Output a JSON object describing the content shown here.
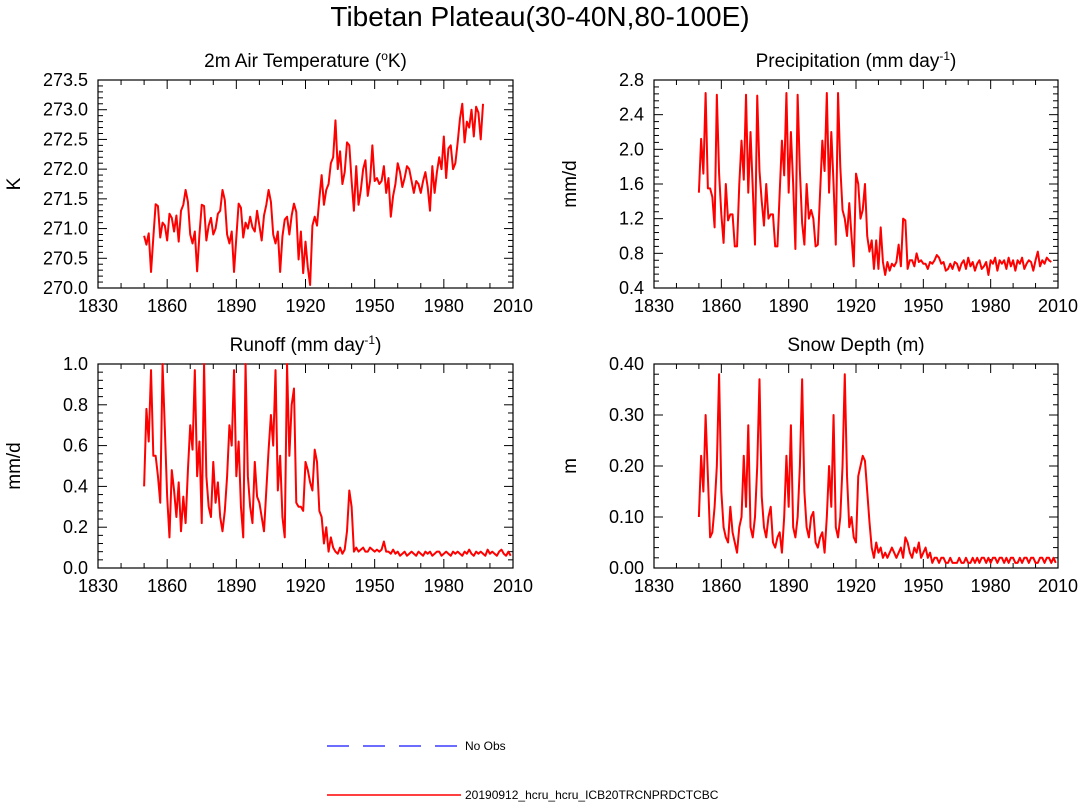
{
  "page_title": "Tibetan Plateau(30-40N,80-100E)",
  "colors": {
    "series": "#ff0000",
    "obs": "#3b3bff",
    "axis": "#000000"
  },
  "legend": {
    "obs_label": "No Obs",
    "model_label": "20190912_hcru_hcru_ICB20TRCNPRDCTCBC"
  },
  "chart_data": [
    {
      "type": "line",
      "title_main": "2m Air Temperature (",
      "title_sup": "o",
      "title_tail": "K)",
      "ylabel": "K",
      "xlabel": "",
      "xlim": [
        1830,
        2010
      ],
      "xticks": [
        "1830",
        "1860",
        "1890",
        "1920",
        "1950",
        "1980",
        "2010"
      ],
      "ylim": [
        270.0,
        273.5
      ],
      "yticks": [
        "270.0",
        "270.5",
        "271.0",
        "271.5",
        "272.0",
        "272.5",
        "273.0",
        "273.5"
      ],
      "x_start": 1850,
      "series": [
        {
          "name": "20190912_hcru_hcru_ICB20TRCNPRDCTCBC",
          "values": [
            270.88,
            270.73,
            270.92,
            270.27,
            270.85,
            271.41,
            271.38,
            270.85,
            271.1,
            271.05,
            270.8,
            271.25,
            271.18,
            270.95,
            271.22,
            270.78,
            271.3,
            271.4,
            271.65,
            271.45,
            270.9,
            270.75,
            270.95,
            270.28,
            270.9,
            271.4,
            271.38,
            270.8,
            271.05,
            271.18,
            270.9,
            271.0,
            271.25,
            271.3,
            271.65,
            271.48,
            270.9,
            270.75,
            270.95,
            270.27,
            270.85,
            271.42,
            271.35,
            270.85,
            271.1,
            271.0,
            271.2,
            271.02,
            270.95,
            271.3,
            271.05,
            270.8,
            271.22,
            271.4,
            271.65,
            271.45,
            270.9,
            270.75,
            270.95,
            270.27,
            270.87,
            271.15,
            271.2,
            270.9,
            271.22,
            271.42,
            271.28,
            270.48,
            270.95,
            270.25,
            270.78,
            270.35,
            270.05,
            271.05,
            271.2,
            271.05,
            271.5,
            271.9,
            271.4,
            271.65,
            271.75,
            272.1,
            272.2,
            272.82,
            272.0,
            272.3,
            271.75,
            271.95,
            272.45,
            272.4,
            271.8,
            271.3,
            272.05,
            271.4,
            271.65,
            272.0,
            272.15,
            271.55,
            271.8,
            272.4,
            271.8,
            271.85,
            271.75,
            271.8,
            272.05,
            271.6,
            271.85,
            271.2,
            271.55,
            271.75,
            272.1,
            271.95,
            271.7,
            271.85,
            272.05,
            272.0,
            271.8,
            271.6,
            271.8,
            271.75,
            271.6,
            271.8,
            271.95,
            271.7,
            271.3,
            272.05,
            271.6,
            271.95,
            272.2,
            272.0,
            272.55,
            271.85,
            272.35,
            272.4,
            272.0,
            272.1,
            272.45,
            272.85,
            273.1,
            272.45,
            272.8,
            272.7,
            273.0,
            272.55,
            273.05,
            272.95,
            272.5,
            273.1
          ]
        }
      ]
    },
    {
      "type": "line",
      "title_main": "Precipitation (mm day",
      "title_sup": "-1",
      "title_tail": ")",
      "ylabel": "mm/d",
      "xlabel": "",
      "xlim": [
        1830,
        2010
      ],
      "xticks": [
        "1830",
        "1860",
        "1890",
        "1920",
        "1950",
        "1980",
        "2010"
      ],
      "ylim": [
        0.4,
        2.8
      ],
      "yticks": [
        "0.4",
        "0.8",
        "1.2",
        "1.6",
        "2.0",
        "2.4",
        "2.8"
      ],
      "x_start": 1850,
      "series": [
        {
          "name": "20190912_hcru_hcru_ICB20TRCNPRDCTCBC",
          "values": [
            1.5,
            2.12,
            1.72,
            2.65,
            1.55,
            1.55,
            1.45,
            1.1,
            2.63,
            1.72,
            1.25,
            0.92,
            1.6,
            1.18,
            1.25,
            1.25,
            0.88,
            0.88,
            1.6,
            2.1,
            1.65,
            2.63,
            1.5,
            2.2,
            1.55,
            0.9,
            2.62,
            1.75,
            1.4,
            1.12,
            1.6,
            1.2,
            1.25,
            1.25,
            0.88,
            0.88,
            1.5,
            2.1,
            1.7,
            2.65,
            1.5,
            2.2,
            1.6,
            0.85,
            2.63,
            1.75,
            1.15,
            0.9,
            1.6,
            1.2,
            1.3,
            1.2,
            0.88,
            0.9,
            1.5,
            2.1,
            1.75,
            2.65,
            1.5,
            2.2,
            1.6,
            0.9,
            2.65,
            1.8,
            1.3,
            1.2,
            1.0,
            1.38,
            1.0,
            0.65,
            1.72,
            1.6,
            1.2,
            1.3,
            1.6,
            1.0,
            0.82,
            0.95,
            0.62,
            0.95,
            0.62,
            1.1,
            0.7,
            0.55,
            0.7,
            0.6,
            0.68,
            0.65,
            0.7,
            0.9,
            0.65,
            1.2,
            1.18,
            0.62,
            0.72,
            0.72,
            0.65,
            0.8,
            0.7,
            0.72,
            0.68,
            0.68,
            0.62,
            0.7,
            0.68,
            0.72,
            0.78,
            0.75,
            0.68,
            0.7,
            0.6,
            0.62,
            0.68,
            0.62,
            0.7,
            0.68,
            0.6,
            0.68,
            0.72,
            0.62,
            0.75,
            0.65,
            0.7,
            0.6,
            0.68,
            0.72,
            0.62,
            0.65,
            0.7,
            0.55,
            0.72,
            0.68,
            0.75,
            0.6,
            0.72,
            0.68,
            0.72,
            0.62,
            0.75,
            0.65,
            0.72,
            0.6,
            0.72,
            0.68,
            0.75,
            0.62,
            0.68,
            0.72,
            0.7,
            0.6,
            0.72,
            0.82,
            0.65,
            0.72,
            0.68,
            0.75,
            0.72,
            0.7
          ]
        }
      ]
    },
    {
      "type": "line",
      "title_main": "Runoff (mm day",
      "title_sup": "-1",
      "title_tail": ")",
      "ylabel": "mm/d",
      "xlabel": "",
      "xlim": [
        1830,
        2010
      ],
      "xticks": [
        "1830",
        "1860",
        "1890",
        "1920",
        "1950",
        "1980",
        "2010"
      ],
      "ylim": [
        0.0,
        1.0
      ],
      "yticks": [
        "0.0",
        "0.2",
        "0.4",
        "0.6",
        "0.8",
        "1.0"
      ],
      "x_start": 1850,
      "series": [
        {
          "name": "20190912_hcru_hcru_ICB20TRCNPRDCTCBC",
          "values": [
            0.4,
            0.78,
            0.62,
            0.97,
            0.55,
            0.55,
            0.45,
            0.32,
            1.0,
            0.68,
            0.35,
            0.15,
            0.48,
            0.38,
            0.25,
            0.42,
            0.18,
            0.35,
            0.22,
            0.48,
            0.7,
            0.58,
            0.97,
            0.45,
            0.62,
            0.22,
            1.0,
            0.45,
            0.3,
            0.25,
            0.52,
            0.32,
            0.42,
            0.25,
            0.18,
            0.28,
            0.45,
            0.7,
            0.6,
            0.97,
            0.45,
            0.62,
            0.3,
            0.15,
            1.0,
            0.45,
            0.3,
            0.22,
            0.52,
            0.35,
            0.32,
            0.25,
            0.18,
            0.38,
            0.58,
            0.75,
            0.6,
            0.97,
            0.38,
            0.55,
            0.25,
            0.15,
            1.0,
            0.55,
            0.8,
            0.88,
            0.32,
            0.3,
            0.3,
            0.28,
            0.52,
            0.48,
            0.42,
            0.38,
            0.58,
            0.52,
            0.28,
            0.25,
            0.12,
            0.2,
            0.08,
            0.15,
            0.1,
            0.08,
            0.07,
            0.1,
            0.07,
            0.09,
            0.18,
            0.38,
            0.3,
            0.08,
            0.1,
            0.08,
            0.09,
            0.1,
            0.08,
            0.08,
            0.1,
            0.09,
            0.08,
            0.09,
            0.08,
            0.09,
            0.13,
            0.08,
            0.08,
            0.07,
            0.09,
            0.07,
            0.08,
            0.06,
            0.07,
            0.08,
            0.06,
            0.07,
            0.08,
            0.07,
            0.06,
            0.08,
            0.07,
            0.06,
            0.08,
            0.07,
            0.08,
            0.06,
            0.07,
            0.08,
            0.08,
            0.06,
            0.07,
            0.08,
            0.07,
            0.06,
            0.08,
            0.07,
            0.08,
            0.07,
            0.06,
            0.08,
            0.07,
            0.09,
            0.07,
            0.06,
            0.08,
            0.07,
            0.08,
            0.07,
            0.06,
            0.09,
            0.07,
            0.08,
            0.07,
            0.06,
            0.08,
            0.09,
            0.07,
            0.06,
            0.08,
            0.06
          ]
        }
      ]
    },
    {
      "type": "line",
      "title_main": "Snow Depth (m)",
      "title_sup": "",
      "title_tail": "",
      "ylabel": "m",
      "xlabel": "",
      "xlim": [
        1830,
        2010
      ],
      "xticks": [
        "1830",
        "1860",
        "1890",
        "1920",
        "1950",
        "1980",
        "2010"
      ],
      "ylim": [
        0.0,
        0.4
      ],
      "yticks": [
        "0.00",
        "0.10",
        "0.20",
        "0.30",
        "0.40"
      ],
      "x_start": 1850,
      "series": [
        {
          "name": "20190912_hcru_hcru_ICB20TRCNPRDCTCBC",
          "values": [
            0.1,
            0.22,
            0.15,
            0.3,
            0.18,
            0.06,
            0.07,
            0.12,
            0.2,
            0.38,
            0.15,
            0.08,
            0.06,
            0.05,
            0.12,
            0.07,
            0.05,
            0.03,
            0.08,
            0.1,
            0.22,
            0.12,
            0.28,
            0.08,
            0.06,
            0.1,
            0.2,
            0.37,
            0.14,
            0.08,
            0.06,
            0.1,
            0.12,
            0.05,
            0.04,
            0.06,
            0.07,
            0.03,
            0.1,
            0.22,
            0.12,
            0.28,
            0.08,
            0.06,
            0.1,
            0.2,
            0.37,
            0.15,
            0.08,
            0.06,
            0.1,
            0.11,
            0.05,
            0.04,
            0.06,
            0.07,
            0.03,
            0.1,
            0.2,
            0.12,
            0.3,
            0.08,
            0.06,
            0.1,
            0.2,
            0.38,
            0.18,
            0.08,
            0.1,
            0.06,
            0.05,
            0.18,
            0.2,
            0.22,
            0.21,
            0.15,
            0.09,
            0.04,
            0.02,
            0.05,
            0.03,
            0.04,
            0.02,
            0.03,
            0.02,
            0.03,
            0.04,
            0.03,
            0.02,
            0.03,
            0.04,
            0.02,
            0.06,
            0.05,
            0.03,
            0.02,
            0.04,
            0.03,
            0.05,
            0.02,
            0.03,
            0.04,
            0.02,
            0.03,
            0.01,
            0.02,
            0.02,
            0.01,
            0.02,
            0.02,
            0.01,
            0.01,
            0.02,
            0.01,
            0.01,
            0.01,
            0.02,
            0.01,
            0.01,
            0.02,
            0.01,
            0.01,
            0.02,
            0.01,
            0.02,
            0.01,
            0.02,
            0.02,
            0.01,
            0.02,
            0.01,
            0.02,
            0.02,
            0.01,
            0.02,
            0.02,
            0.01,
            0.02,
            0.01,
            0.02,
            0.02,
            0.01,
            0.01,
            0.02,
            0.01,
            0.02,
            0.02,
            0.01,
            0.02,
            0.02,
            0.01,
            0.01,
            0.02,
            0.02,
            0.01,
            0.02,
            0.02,
            0.01,
            0.02,
            0.01
          ]
        }
      ]
    }
  ]
}
